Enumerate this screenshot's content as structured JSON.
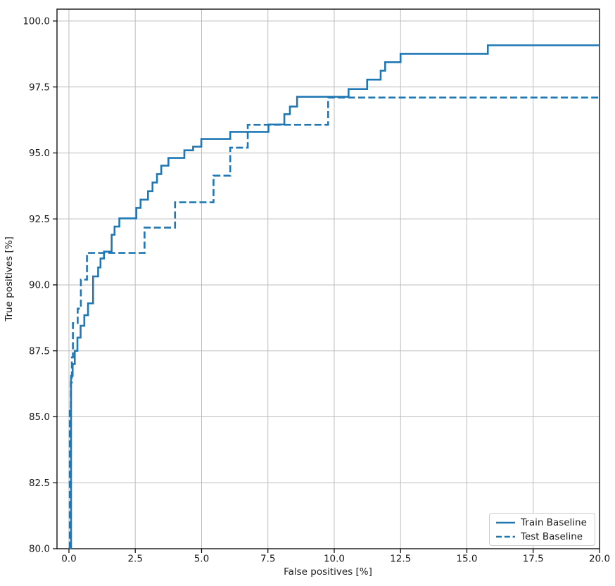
{
  "chart_data": {
    "type": "line",
    "subtype": "step",
    "title": "",
    "xlabel": "False positives [%]",
    "ylabel": "True positives [%]",
    "xlim": [
      -0.45,
      20.0
    ],
    "ylim": [
      80.0,
      100.45
    ],
    "grid": true,
    "grid_color": "#bdbdbd",
    "spine_color": "#000000",
    "line_color": "#1f77b4",
    "legend_position": "lower right",
    "xticks": {
      "values": [
        0,
        2.5,
        5,
        7.5,
        10,
        12.5,
        15,
        17.5,
        20
      ],
      "labels": [
        "0.0",
        "2.5",
        "5.0",
        "7.5",
        "10.0",
        "12.5",
        "15.0",
        "17.5",
        "20.0"
      ]
    },
    "yticks": {
      "values": [
        80,
        82.5,
        85,
        87.5,
        90,
        92.5,
        95,
        97.5,
        100
      ],
      "labels": [
        "80.0",
        "82.5",
        "85.0",
        "87.5",
        "90.0",
        "92.5",
        "95.0",
        "97.5",
        "100.0"
      ]
    },
    "series": [
      {
        "name": "Train Baseline",
        "style": "solid",
        "color": "#1f77b4",
        "start": [
          0.08,
          80.0
        ],
        "end_x": 20.0,
        "steps": [
          [
            0.08,
            86.55
          ],
          [
            0.14,
            87.0
          ],
          [
            0.22,
            87.5
          ],
          [
            0.32,
            88.0
          ],
          [
            0.44,
            88.45
          ],
          [
            0.58,
            88.85
          ],
          [
            0.72,
            89.3
          ],
          [
            0.91,
            90.32
          ],
          [
            1.1,
            90.66
          ],
          [
            1.19,
            91.0
          ],
          [
            1.32,
            91.26
          ],
          [
            1.61,
            91.9
          ],
          [
            1.72,
            92.21
          ],
          [
            1.9,
            92.52
          ],
          [
            2.54,
            92.92
          ],
          [
            2.7,
            93.23
          ],
          [
            2.98,
            93.55
          ],
          [
            3.15,
            93.88
          ],
          [
            3.32,
            94.2
          ],
          [
            3.48,
            94.52
          ],
          [
            3.75,
            94.81
          ],
          [
            4.35,
            95.1
          ],
          [
            4.68,
            95.24
          ],
          [
            4.99,
            95.53
          ],
          [
            6.08,
            95.8
          ],
          [
            7.52,
            96.08
          ],
          [
            8.12,
            96.47
          ],
          [
            8.33,
            96.76
          ],
          [
            8.6,
            97.13
          ],
          [
            10.54,
            97.42
          ],
          [
            11.24,
            97.78
          ],
          [
            11.75,
            98.12
          ],
          [
            11.92,
            98.44
          ],
          [
            12.5,
            98.76
          ],
          [
            15.79,
            99.08
          ]
        ]
      },
      {
        "name": "Test Baseline",
        "style": "dashed",
        "color": "#1f77b4",
        "start": [
          0.03,
          80.0
        ],
        "end_x": 20.0,
        "steps": [
          [
            0.03,
            85.3
          ],
          [
            0.07,
            86.3
          ],
          [
            0.11,
            87.25
          ],
          [
            0.15,
            88.55
          ],
          [
            0.33,
            89.1
          ],
          [
            0.45,
            90.2
          ],
          [
            0.68,
            91.21
          ],
          [
            2.85,
            92.17
          ],
          [
            4.0,
            93.13
          ],
          [
            5.45,
            94.14
          ],
          [
            6.08,
            95.2
          ],
          [
            6.74,
            96.07
          ],
          [
            9.77,
            97.1
          ]
        ]
      }
    ]
  }
}
